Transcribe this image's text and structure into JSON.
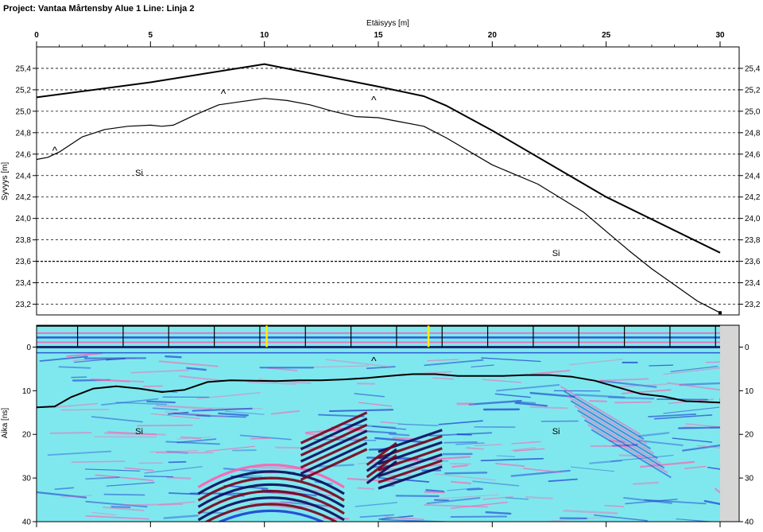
{
  "title": "Project: Vantaa Mårtensby Alue 1  Line: Linja 2",
  "chart_data": [
    {
      "type": "line",
      "xlabel": "Etäisyys [m]",
      "ylabel": "Syvyys [m]",
      "xlim": [
        0,
        30
      ],
      "ylim": [
        23.1,
        25.6
      ],
      "x_ticks": [
        "0",
        "5",
        "10",
        "15",
        "20",
        "25",
        "30"
      ],
      "y_ticks": [
        "25,4",
        "25,2",
        "25,0",
        "24,8",
        "24,6",
        "24,4",
        "24,2",
        "24,0",
        "23,8",
        "23,6",
        "23,4",
        "23,2"
      ],
      "series": [
        {
          "values": [
            [
              0,
              25.13
            ],
            [
              5,
              25.27
            ],
            [
              10,
              25.44
            ],
            [
              15,
              25.23
            ],
            [
              17,
              25.14
            ],
            [
              18,
              25.05
            ],
            [
              20,
              24.82
            ],
            [
              25,
              24.2
            ],
            [
              30,
              23.68
            ]
          ]
        },
        {
          "values": [
            [
              0,
              24.55
            ],
            [
              0.5,
              24.57
            ],
            [
              1,
              24.62
            ],
            [
              2,
              24.76
            ],
            [
              3,
              24.83
            ],
            [
              4,
              24.86
            ],
            [
              5,
              24.87
            ],
            [
              5.5,
              24.86
            ],
            [
              6,
              24.87
            ],
            [
              7,
              24.97
            ],
            [
              8,
              25.06
            ],
            [
              9,
              25.09
            ],
            [
              10,
              25.12
            ],
            [
              11,
              25.1
            ],
            [
              12,
              25.06
            ],
            [
              13,
              25.0
            ],
            [
              14,
              24.95
            ],
            [
              15,
              24.94
            ],
            [
              16,
              24.9
            ],
            [
              17,
              24.86
            ],
            [
              18,
              24.75
            ],
            [
              20,
              24.5
            ],
            [
              22,
              24.32
            ],
            [
              24,
              24.06
            ],
            [
              25,
              23.88
            ],
            [
              26,
              23.7
            ],
            [
              27,
              23.53
            ],
            [
              28,
              23.38
            ],
            [
              29,
              23.23
            ],
            [
              30,
              23.12
            ]
          ]
        }
      ],
      "annotations": [
        {
          "text": "^",
          "x": 0.8,
          "y": 24.6
        },
        {
          "text": "^",
          "x": 8.2,
          "y": 25.13
        },
        {
          "text": "^",
          "x": 14.8,
          "y": 25.07
        },
        {
          "text": "Si",
          "x": 4.5,
          "y": 24.4
        },
        {
          "text": "Si",
          "x": 22.8,
          "y": 23.65
        }
      ]
    },
    {
      "type": "heatmap",
      "ylabel": "Aika [ns]",
      "xlim": [
        0,
        30
      ],
      "ylim": [
        40,
        -5
      ],
      "y_ticks": [
        "0",
        "10",
        "20",
        "30",
        "40"
      ],
      "marker_x": [
        1.8,
        3.8,
        5.8,
        7.8,
        9.8,
        11.8,
        13.8,
        15.8,
        17.8,
        19.8,
        21.8,
        23.8,
        25.8,
        27.8,
        29.8
      ],
      "yellow_marker_x": [
        10.1,
        17.2
      ],
      "interface": [
        [
          0,
          13.8
        ],
        [
          0.8,
          13.6
        ],
        [
          1.5,
          11.5
        ],
        [
          2.5,
          9.5
        ],
        [
          3.5,
          9
        ],
        [
          4.5,
          9.5
        ],
        [
          5.5,
          10.3
        ],
        [
          6.5,
          9.8
        ],
        [
          7.5,
          8
        ],
        [
          8.5,
          7.6
        ],
        [
          9.5,
          7.7
        ],
        [
          10.5,
          7.8
        ],
        [
          11.5,
          7.6
        ],
        [
          12.5,
          7.6
        ],
        [
          13.5,
          7.4
        ],
        [
          14.5,
          7.1
        ],
        [
          15.5,
          6.6
        ],
        [
          16.5,
          6.2
        ],
        [
          17.5,
          6.2
        ],
        [
          18.5,
          6.6
        ],
        [
          19.5,
          6.6
        ],
        [
          20.5,
          6.6
        ],
        [
          21.5,
          6.4
        ],
        [
          22.5,
          6.4
        ],
        [
          23.5,
          6.8
        ],
        [
          24.5,
          7.7
        ],
        [
          25.5,
          9.2
        ],
        [
          26.5,
          10.7
        ],
        [
          27.5,
          11.3
        ],
        [
          28.5,
          12.4
        ],
        [
          29.5,
          12.6
        ],
        [
          30,
          12.7
        ]
      ],
      "annotations": [
        {
          "text": "^",
          "x": 14.8,
          "y": 4
        },
        {
          "text": "Si",
          "x": 4.5,
          "y": 20
        },
        {
          "text": "Si",
          "x": 22.8,
          "y": 20
        }
      ],
      "colors": {
        "background": "#7fe8ee",
        "positive": "#ff5fb0",
        "negative": "#1e3fd0",
        "strong_positive": "#7a0018",
        "strong_negative": "#0b0a5a",
        "side_panel": "#d6d6d6"
      }
    }
  ]
}
